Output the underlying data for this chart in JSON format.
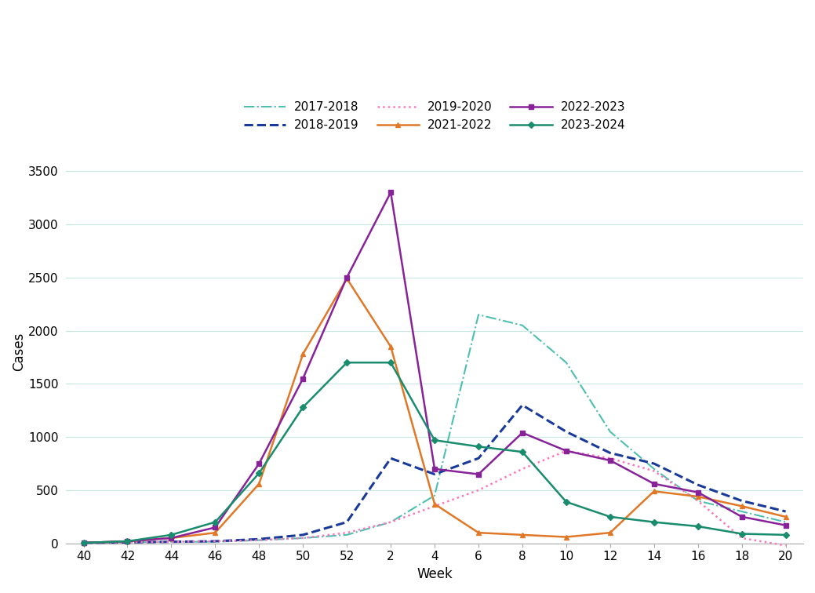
{
  "xlabel": "Week",
  "ylabel": "Cases",
  "ylim": [
    0,
    3600
  ],
  "yticks": [
    0,
    500,
    1000,
    1500,
    2000,
    2500,
    3000,
    3500
  ],
  "week_labels": [
    "40",
    "42",
    "44",
    "46",
    "48",
    "50",
    "52",
    "2",
    "4",
    "6",
    "8",
    "10",
    "12",
    "14",
    "16",
    "18",
    "20"
  ],
  "background_color": "#ffffff",
  "grid_color": "#c8e8e4",
  "series": [
    {
      "label": "2017-2018",
      "color": "#4dbfb0",
      "linestyle": "-.",
      "marker": null,
      "linewidth": 1.5,
      "markersize": 5,
      "y": [
        5,
        10,
        15,
        15,
        30,
        50,
        80,
        200,
        450,
        2150,
        2050,
        1700,
        1050,
        700,
        400,
        300,
        200
      ]
    },
    {
      "label": "2018-2019",
      "color": "#1a3a9a",
      "linestyle": "--",
      "marker": null,
      "linewidth": 2.2,
      "markersize": 5,
      "y": [
        5,
        10,
        15,
        20,
        40,
        80,
        200,
        800,
        650,
        800,
        1300,
        1050,
        850,
        750,
        550,
        400,
        300
      ]
    },
    {
      "label": "2019-2020",
      "color": "#ff77bb",
      "linestyle": ":",
      "marker": null,
      "linewidth": 1.8,
      "markersize": 5,
      "y": [
        5,
        10,
        15,
        20,
        30,
        50,
        100,
        200,
        350,
        500,
        700,
        870,
        800,
        680,
        400,
        50,
        -20
      ]
    },
    {
      "label": "2021-2022",
      "color": "#e07828",
      "linestyle": "-",
      "marker": "^",
      "linewidth": 1.8,
      "markersize": 5,
      "y": [
        5,
        20,
        50,
        100,
        560,
        1780,
        2490,
        1850,
        370,
        100,
        80,
        60,
        100,
        490,
        440,
        350,
        250
      ]
    },
    {
      "label": "2022-2023",
      "color": "#882299",
      "linestyle": "-",
      "marker": "s",
      "linewidth": 1.8,
      "markersize": 5,
      "y": [
        5,
        20,
        50,
        150,
        750,
        1550,
        2500,
        3300,
        700,
        650,
        1040,
        870,
        780,
        560,
        480,
        250,
        170
      ]
    },
    {
      "label": "2023-2024",
      "color": "#1a8c6e",
      "linestyle": "-",
      "marker": "D",
      "linewidth": 1.8,
      "markersize": 4,
      "y": [
        5,
        20,
        80,
        200,
        660,
        1280,
        1700,
        1700,
        970,
        910,
        860,
        390,
        250,
        200,
        160,
        90,
        80
      ]
    }
  ]
}
